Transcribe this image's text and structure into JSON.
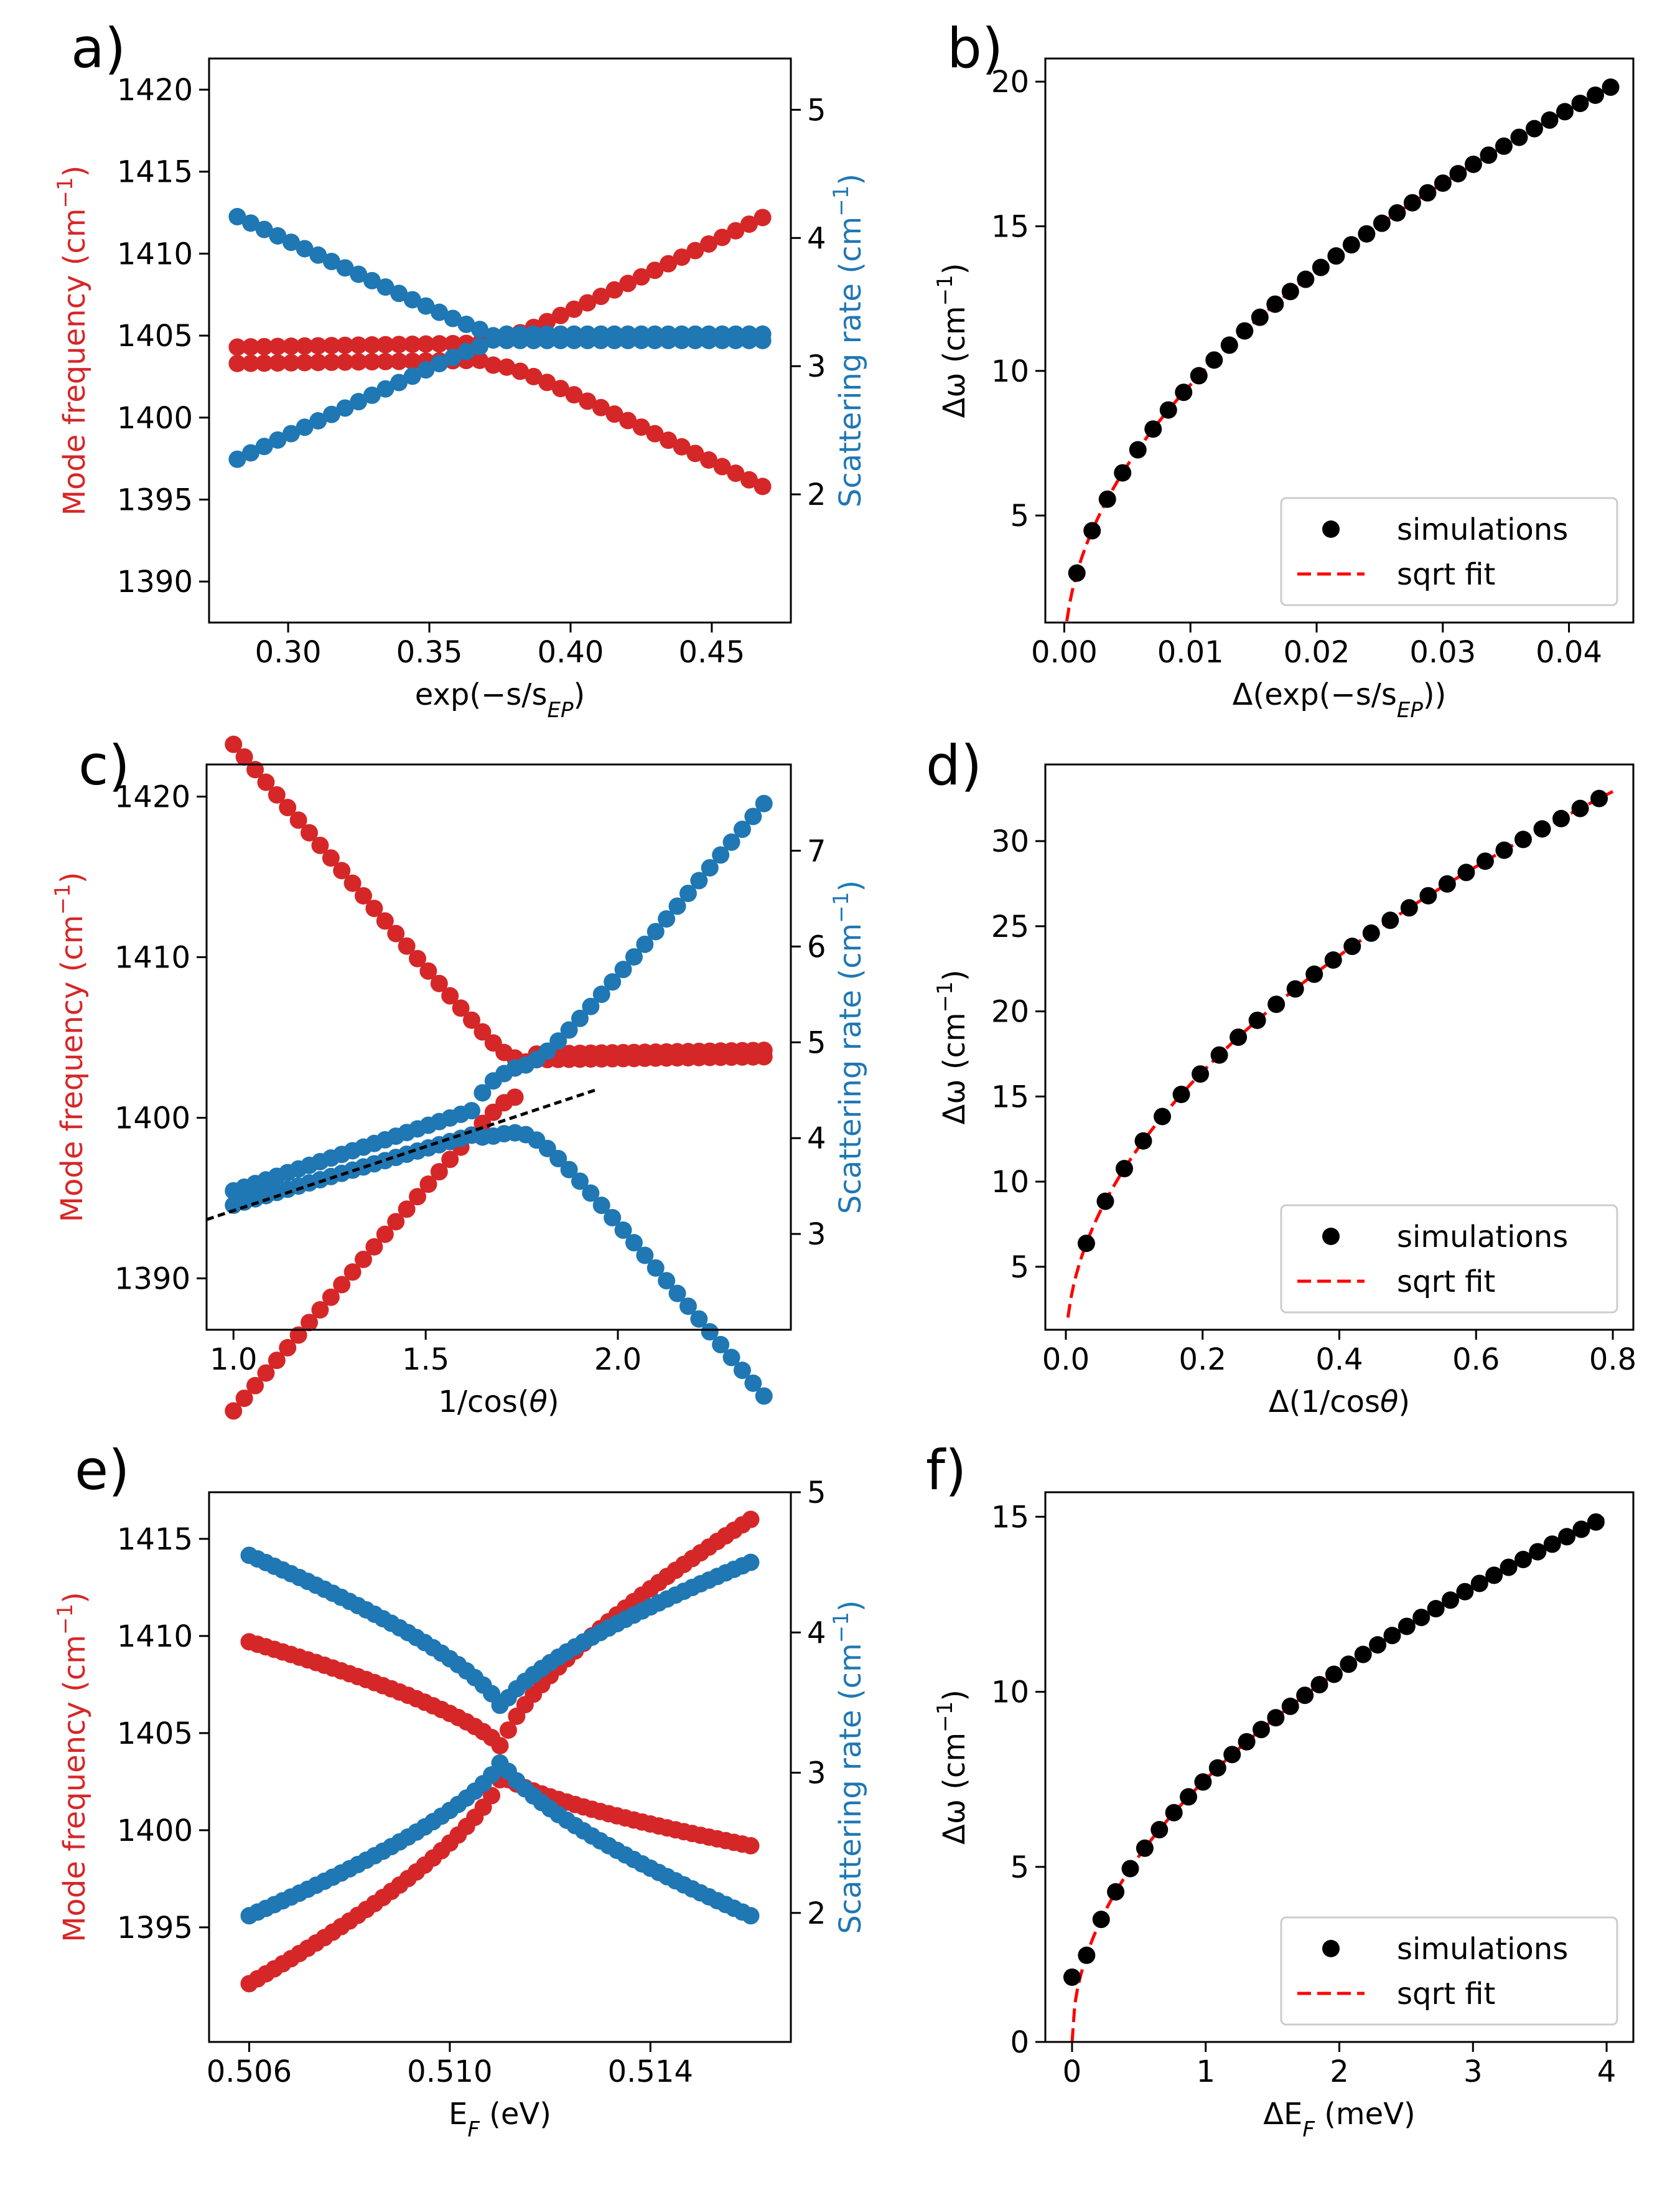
{
  "colors": {
    "freq": "#d62728",
    "rate": "#1f77b4",
    "fit": "#ff0000",
    "sim": "#000000",
    "guide": "#000000"
  },
  "chart_data": [
    {
      "panel": "a)",
      "type": "scatter",
      "xlabel": "exp(−s/s",
      "xlabel_sub": "EP",
      "xlabel_suffix": ")",
      "ylabel_left": "Mode frequency (cm",
      "ylabel_right": "Scattering rate (cm",
      "ylabel_sup": "−1",
      "ylabel_close": ")",
      "xlim": [
        0.272,
        0.478
      ],
      "ylim_left": [
        1387.5,
        1421.9
      ],
      "ylim_right": [
        1.0,
        5.4
      ],
      "xticks": [
        0.3,
        0.35,
        0.4,
        0.45
      ],
      "xtick_labels": [
        "0.30",
        "0.35",
        "0.40",
        "0.45"
      ],
      "yticks_left": [
        1390,
        1395,
        1400,
        1405,
        1410,
        1415,
        1420
      ],
      "yticks_left_labels": [
        "1390",
        "1395",
        "1400",
        "1405",
        "1410",
        "1415",
        "1420"
      ],
      "yticks_right": [
        2,
        3,
        4,
        5
      ],
      "yticks_right_labels": [
        "2",
        "3",
        "4",
        "5"
      ],
      "x_range": [
        0.282,
        0.468
      ],
      "n_points": 40,
      "crossing": 0.372,
      "series": [
        {
          "name": "frequency upper",
          "axis": "left",
          "color": "freq",
          "model": "repel",
          "center": 1404.0,
          "coupling": 0.8,
          "slope": 85,
          "side": 1,
          "flat_value": 1404.3,
          "flat_side": "left",
          "flat_delta": 0.25
        },
        {
          "name": "frequency lower",
          "axis": "left",
          "color": "freq",
          "model": "repel",
          "center": 1404.0,
          "coupling": 0.8,
          "slope": 85,
          "side": -1,
          "flat_value": 1403.3,
          "flat_side": "left",
          "flat_delta": 0.2
        },
        {
          "name": "scattering rate upper",
          "axis": "right",
          "color": "rate",
          "model": "repel",
          "center": 3.22,
          "coupling": 0.05,
          "slope": 10.5,
          "side": -1,
          "flat_value": 3.25,
          "flat_side": "right",
          "flat_delta": 0.0
        },
        {
          "name": "scattering rate lower",
          "axis": "right",
          "color": "rate",
          "model": "repel",
          "center": 3.22,
          "coupling": 0.05,
          "slope": 10.5,
          "side": 1,
          "flat_value": 3.2,
          "flat_side": "right",
          "flat_delta": 0.0
        }
      ]
    },
    {
      "panel": "b)",
      "type": "scatter",
      "xlabel": "Δ(exp(−s/s",
      "xlabel_sub": "EP",
      "xlabel_suffix": "))",
      "ylabel": "Δω (cm",
      "ylabel_sup": "−1",
      "ylabel_close": ")",
      "xlim": [
        -0.0015,
        0.0451
      ],
      "ylim": [
        1.3,
        20.8
      ],
      "xticks": [
        0.0,
        0.01,
        0.02,
        0.03,
        0.04
      ],
      "xtick_labels": [
        "0.00",
        "0.01",
        "0.02",
        "0.03",
        "0.04"
      ],
      "yticks": [
        5,
        10,
        15,
        20
      ],
      "ytick_labels": [
        "5",
        "10",
        "15",
        "20"
      ],
      "sim_x_range": [
        0.001,
        0.0433
      ],
      "n_sim": 36,
      "fit_coeff": 95.2,
      "fit_x_range": [
        0.0002,
        0.0433
      ],
      "legend": [
        "simulations",
        "sqrt fit"
      ],
      "legend_loc": "lower right"
    },
    {
      "panel": "c)",
      "type": "scatter",
      "xlabel": "1/cos(",
      "xlabel_theta": "θ",
      "xlabel_suffix": ")",
      "ylabel_left": "Mode frequency (cm",
      "ylabel_right": "Scattering rate (cm",
      "ylabel_sup": "−1",
      "ylabel_close": ")",
      "xlim": [
        0.93,
        2.45
      ],
      "ylim_left": [
        1386.8,
        1422.0
      ],
      "ylim_right": [
        2.0,
        7.9
      ],
      "xticks": [
        1.0,
        1.5,
        2.0
      ],
      "xtick_labels": [
        "1.0",
        "1.5",
        "2.0"
      ],
      "yticks_left": [
        1390,
        1400,
        1410,
        1420
      ],
      "yticks_left_labels": [
        "1390",
        "1400",
        "1410",
        "1420"
      ],
      "yticks_right": [
        3,
        4,
        5,
        6,
        7
      ],
      "yticks_right_labels": [
        "3",
        "4",
        "5",
        "6",
        "7"
      ],
      "x_range": [
        1.0,
        2.38
      ],
      "n_points": 50,
      "crossing": 1.74,
      "guide_line": {
        "x": [
          0.93,
          1.94
        ],
        "y_right": [
          3.15,
          4.5
        ]
      },
      "series": [
        {
          "name": "frequency upper",
          "axis": "left",
          "color": "freq",
          "model": "repel",
          "center": 1402.5,
          "coupling": 1.2,
          "slope": 28,
          "side": -1,
          "flat_value": 1404.2,
          "flat_side": "right",
          "flat_delta": 0.25
        },
        {
          "name": "frequency lower",
          "axis": "left",
          "color": "freq",
          "model": "repel",
          "center": 1402.5,
          "coupling": 1.2,
          "slope": 28,
          "side": 1,
          "flat_value": 1403.8,
          "flat_side": "right",
          "flat_delta": 0.2
        },
        {
          "name": "scattering rate upper",
          "axis": "right",
          "color": "rate",
          "model": "repel",
          "center": 4.4,
          "coupling": 0.35,
          "slope": 4.8,
          "side": 1,
          "lin0": 3.45,
          "lin_slope": 1.35,
          "flat_side": "left"
        },
        {
          "name": "scattering rate lower",
          "axis": "right",
          "color": "rate",
          "model": "repel",
          "center": 4.4,
          "coupling": 0.35,
          "slope": 4.8,
          "side": -1,
          "lin0": 3.3,
          "lin_slope": 1.18,
          "flat_side": "left"
        }
      ]
    },
    {
      "panel": "d)",
      "type": "scatter",
      "xlabel": "Δ(1/cos",
      "xlabel_theta": "θ",
      "xlabel_suffix": ")",
      "ylabel": "Δω (cm",
      "ylabel_sup": "−1",
      "ylabel_close": ")",
      "xlim": [
        -0.03,
        0.83
      ],
      "ylim": [
        1.3,
        34.5
      ],
      "xticks": [
        0.0,
        0.2,
        0.4,
        0.6,
        0.8
      ],
      "xtick_labels": [
        "0.0",
        "0.2",
        "0.4",
        "0.6",
        "0.8"
      ],
      "yticks": [
        5,
        10,
        15,
        20,
        25,
        30
      ],
      "ytick_labels": [
        "5",
        "10",
        "15",
        "20",
        "25",
        "30"
      ],
      "sim_x_range": [
        0.03,
        0.78
      ],
      "n_sim": 28,
      "fit_coeff": 36.8,
      "fit_x_range": [
        0.003,
        0.8
      ],
      "legend": [
        "simulations",
        "sqrt fit"
      ],
      "legend_loc": "lower right"
    },
    {
      "panel": "e)",
      "type": "scatter",
      "xlabel": "E",
      "xlabel_sub": "F",
      "xlabel_suffix": " (eV)",
      "ylabel_left": "Mode frequency (cm",
      "ylabel_right": "Scattering rate (cm",
      "ylabel_sup": "−1",
      "ylabel_close": ")",
      "xlim": [
        0.5052,
        0.5168
      ],
      "ylim_left": [
        1389.1,
        1417.4
      ],
      "ylim_right": [
        1.08,
        5.0
      ],
      "xticks": [
        0.506,
        0.51,
        0.514
      ],
      "xtick_labels": [
        "0.506",
        "0.510",
        "0.514"
      ],
      "yticks_left": [
        1395,
        1400,
        1405,
        1410,
        1415
      ],
      "yticks_left_labels": [
        "1395",
        "1400",
        "1405",
        "1410",
        "1415"
      ],
      "yticks_right": [
        2,
        3,
        4,
        5
      ],
      "yticks_right_labels": [
        "2",
        "3",
        "4",
        "5"
      ],
      "x_range": [
        0.506,
        0.516
      ],
      "n_points": 61,
      "crossing": 0.51103,
      "series": [
        {
          "name": "frequency upper",
          "axis": "left",
          "color": "freq",
          "model": "edge",
          "center": 1405.5,
          "edge": 1404.2,
          "left_end": 1409.7,
          "right_end": 1416.0,
          "curv": 0.7,
          "side": 1
        },
        {
          "name": "frequency lower",
          "axis": "left",
          "color": "freq",
          "model": "edge",
          "center": 1401.6,
          "edge": 1402.9,
          "left_end": 1392.1,
          "right_end": 1399.2,
          "curv": 0.7,
          "side": -1
        },
        {
          "name": "scattering rate upper",
          "axis": "right",
          "color": "rate",
          "model": "edge",
          "center": 3.6,
          "edge": 3.45,
          "left_end": 4.55,
          "right_end": 4.5,
          "curv": 0.7,
          "side": 1
        },
        {
          "name": "scattering rate lower",
          "axis": "right",
          "color": "rate",
          "model": "edge",
          "center": 2.95,
          "edge": 3.1,
          "left_end": 1.98,
          "right_end": 1.98,
          "curv": 0.7,
          "side": -1
        }
      ]
    },
    {
      "panel": "f)",
      "type": "scatter",
      "xlabel": "ΔE",
      "xlabel_sub": "F",
      "xlabel_suffix": " (meV)",
      "ylabel": "Δω (cm",
      "ylabel_sup": "−1",
      "ylabel_close": ")",
      "xlim": [
        -0.2,
        4.2
      ],
      "ylim": [
        0.0,
        15.7
      ],
      "xticks": [
        0,
        1,
        2,
        3,
        4
      ],
      "xtick_labels": [
        "0",
        "1",
        "2",
        "3",
        "4"
      ],
      "yticks": [
        0,
        5,
        10,
        15
      ],
      "ytick_labels": [
        "0",
        "5",
        "10",
        "15"
      ],
      "sim_x_range": [
        0.0,
        3.92
      ],
      "n_sim": 37,
      "sim_y0": 1.85,
      "fit_coeff": 7.5,
      "fit_x_range": [
        0.0,
        3.98
      ],
      "legend": [
        "simulations",
        "sqrt fit"
      ],
      "legend_loc": "lower right"
    }
  ]
}
